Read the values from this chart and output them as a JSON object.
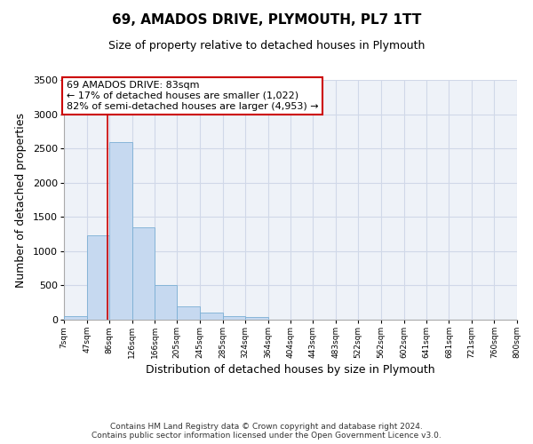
{
  "title": "69, AMADOS DRIVE, PLYMOUTH, PL7 1TT",
  "subtitle": "Size of property relative to detached houses in Plymouth",
  "xlabel": "Distribution of detached houses by size in Plymouth",
  "ylabel": "Number of detached properties",
  "footer_line1": "Contains HM Land Registry data © Crown copyright and database right 2024.",
  "footer_line2": "Contains public sector information licensed under the Open Government Licence v3.0.",
  "annotation_title": "69 AMADOS DRIVE: 83sqm",
  "annotation_line1": "← 17% of detached houses are smaller (1,022)",
  "annotation_line2": "82% of semi-detached houses are larger (4,953) →",
  "bar_edges": [
    7,
    47,
    86,
    126,
    166,
    205,
    245,
    285,
    324,
    364,
    404,
    443,
    483,
    522,
    562,
    602,
    641,
    681,
    721,
    760,
    800
  ],
  "bar_heights": [
    50,
    1230,
    2590,
    1350,
    500,
    200,
    110,
    50,
    40,
    5,
    2,
    1,
    0,
    0,
    0,
    0,
    0,
    0,
    0,
    0
  ],
  "bar_color": "#c6d9f0",
  "bar_edge_color": "#7bafd4",
  "marker_line_x": 83,
  "marker_line_color": "#cc0000",
  "ylim": [
    0,
    3500
  ],
  "yticks": [
    0,
    500,
    1000,
    1500,
    2000,
    2500,
    3000,
    3500
  ],
  "xlim": [
    7,
    800
  ],
  "xtick_labels": [
    "7sqm",
    "47sqm",
    "86sqm",
    "126sqm",
    "166sqm",
    "205sqm",
    "245sqm",
    "285sqm",
    "324sqm",
    "364sqm",
    "404sqm",
    "443sqm",
    "483sqm",
    "522sqm",
    "562sqm",
    "602sqm",
    "641sqm",
    "681sqm",
    "721sqm",
    "760sqm",
    "800sqm"
  ],
  "xtick_positions": [
    7,
    47,
    86,
    126,
    166,
    205,
    245,
    285,
    324,
    364,
    404,
    443,
    483,
    522,
    562,
    602,
    641,
    681,
    721,
    760,
    800
  ],
  "annotation_box_color": "#ffffff",
  "annotation_box_edge_color": "#cc0000",
  "grid_color": "#d0d8e8",
  "background_color": "#ffffff",
  "plot_bg_color": "#eef2f8"
}
